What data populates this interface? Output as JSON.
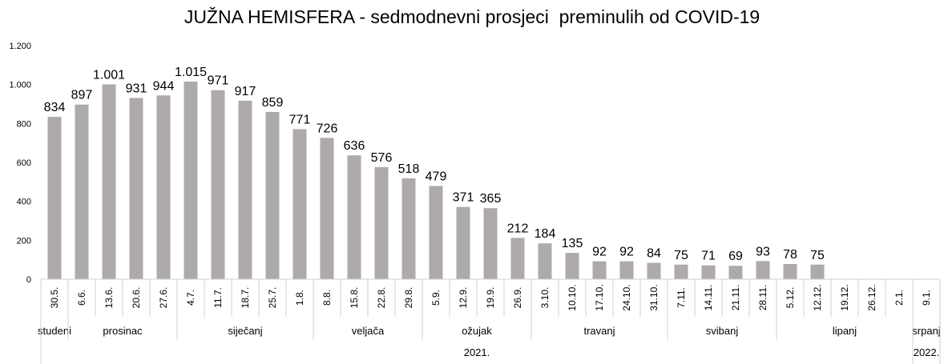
{
  "chart_data": {
    "type": "bar",
    "title": "JUŽNA HEMISFERA - sedmodnevni prosjeci  preminulih od COVID-19",
    "xlabel": "",
    "ylabel": "",
    "ylim": [
      0,
      1200
    ],
    "yticks": [
      0,
      200,
      400,
      600,
      800,
      1000,
      1200
    ],
    "ytick_labels": [
      "0",
      "200",
      "400",
      "600",
      "800",
      "1.000",
      "1.200"
    ],
    "grid": false,
    "legend": "none",
    "bar_color": "#aeaaaa",
    "categories": [
      "30.5.",
      "6.6.",
      "13.6.",
      "20.6.",
      "27.6.",
      "4.7.",
      "11.7.",
      "18.7.",
      "25.7.",
      "1.8.",
      "8.8.",
      "15.8.",
      "22.8.",
      "29.8.",
      "5.9.",
      "12.9.",
      "19.9.",
      "26.9.",
      "3.10.",
      "10.10.",
      "17.10.",
      "24.10.",
      "31.10.",
      "7.11.",
      "14.11.",
      "21.11.",
      "28.11.",
      "5.12.",
      "12.12.",
      "19.12.",
      "26.12.",
      "2.1.",
      "9.1."
    ],
    "values": [
      834,
      897,
      1001,
      931,
      944,
      1015,
      971,
      917,
      859,
      771,
      726,
      636,
      576,
      518,
      479,
      371,
      365,
      212,
      184,
      135,
      92,
      92,
      84,
      75,
      71,
      69,
      93,
      78,
      75,
      null,
      null,
      null,
      null
    ],
    "data_labels": [
      "834",
      "897",
      "1.001",
      "931",
      "944",
      "1.015",
      "971",
      "917",
      "859",
      "771",
      "726",
      "636",
      "576",
      "518",
      "479",
      "371",
      "365",
      "212",
      "184",
      "135",
      "92",
      "92",
      "84",
      "75",
      "71",
      "69",
      "93",
      "78",
      "75",
      "",
      "",
      "",
      ""
    ],
    "month_groups": [
      {
        "label": "studeni",
        "start": 0,
        "end": 0
      },
      {
        "label": "prosinac",
        "start": 1,
        "end": 4
      },
      {
        "label": "siječanj",
        "start": 5,
        "end": 9
      },
      {
        "label": "veljača",
        "start": 10,
        "end": 13
      },
      {
        "label": "ožujak",
        "start": 14,
        "end": 17
      },
      {
        "label": "travanj",
        "start": 18,
        "end": 22
      },
      {
        "label": "svibanj",
        "start": 23,
        "end": 26
      },
      {
        "label": "lipanj",
        "start": 27,
        "end": 31
      },
      {
        "label": "srpanj",
        "start": 32,
        "end": 32
      }
    ],
    "year_groups": [
      {
        "label": "2021.",
        "start": 0,
        "end": 31
      },
      {
        "label": "2022.",
        "start": 32,
        "end": 32
      }
    ]
  }
}
